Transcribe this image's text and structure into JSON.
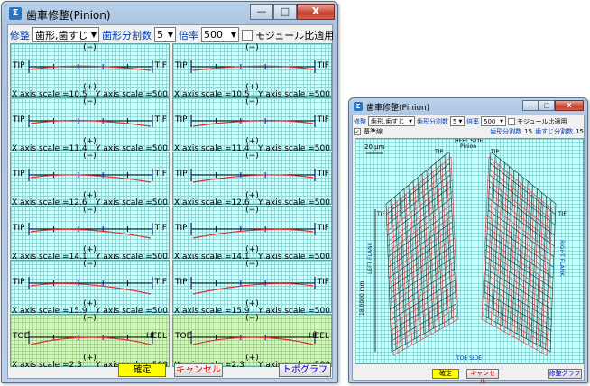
{
  "main": {
    "title": "歯車修整(Pinion)",
    "minimize": "—",
    "maximize": "□",
    "close": "X",
    "toolbar": {
      "mod_label": "修整",
      "mod_value": "歯形,歯すじ",
      "div_label": "歯形分割数",
      "div_value": "5",
      "scale_label": "倍率",
      "scale_value": "500",
      "module_ratio": "モジュール比適用"
    },
    "panels": [
      {
        "left": "TIP",
        "right": "TIF",
        "top": "(−)",
        "bottom": "(+)",
        "x": "X axis scale =10.5",
        "y": "Y axis scale =500"
      },
      {
        "left": "TIP",
        "right": "TIF",
        "top": "(−)",
        "bottom": "(+)",
        "x": "X axis scale =10.5",
        "y": "Y axis scale =500"
      },
      {
        "left": "TIP",
        "right": "TIF",
        "top": "(−)",
        "bottom": "(+)",
        "x": "X axis scale =11.4",
        "y": "Y axis scale =500"
      },
      {
        "left": "TIP",
        "right": "TIF",
        "top": "(−)",
        "bottom": "(+)",
        "x": "X axis scale =11.4",
        "y": "Y axis scale =500"
      },
      {
        "left": "TIP",
        "right": "TIF",
        "top": "(−)",
        "bottom": "(+)",
        "x": "X axis scale =12.6",
        "y": "Y axis scale =500"
      },
      {
        "left": "TIP",
        "right": "TIF",
        "top": "(−)",
        "bottom": "(+)",
        "x": "X axis scale =12.6",
        "y": "Y axis scale =500"
      },
      {
        "left": "TIP",
        "right": "TIF",
        "top": "(−)",
        "bottom": "(+)",
        "x": "X axis scale =14.1",
        "y": "Y axis scale =500"
      },
      {
        "left": "TIP",
        "right": "TIF",
        "top": "(−)",
        "bottom": "(+)",
        "x": "X axis scale =14.1",
        "y": "Y axis scale =500"
      },
      {
        "left": "TIP",
        "right": "TIF",
        "top": "(−)",
        "bottom": "(+)",
        "x": "X axis scale =15.9",
        "y": "Y axis scale =500"
      },
      {
        "left": "TIP",
        "right": "TIF",
        "top": "(−)",
        "bottom": "(+)",
        "x": "X axis scale =15.9",
        "y": "Y axis scale =500"
      },
      {
        "left": "TOE",
        "right": "HEEL",
        "top": "(−)",
        "bottom": "(+)",
        "x": "X axis scale =2.3",
        "y": "Y axis scale =500"
      },
      {
        "left": "TOE",
        "right": "HEEL",
        "top": "(−)",
        "bottom": "(+)",
        "x": "X axis scale =2.3",
        "y": "Y axis scale =500"
      }
    ],
    "buttons": {
      "ok": "確定",
      "cancel": "キャンセル",
      "topo": "トポグラフ"
    }
  },
  "sub": {
    "title": "歯車修整(Pinion)",
    "toolbar": {
      "mod_label": "修整",
      "mod_value": "歯形,歯すじ",
      "div_label": "歯形分割数",
      "div_value": "5",
      "scale_label": "倍率",
      "scale_value": "500",
      "module_ratio": "モジュール比適用"
    },
    "ref_label": "基準線",
    "profile_div_label": "歯形分割数",
    "profile_div_value": "15",
    "lead_div_label": "歯すじ分割数",
    "lead_div_value": "15",
    "scale_bar": "20 μm",
    "heel_side": "HEEL SIDE",
    "pinion": "Pinion",
    "tip_left": "TIP",
    "tip_right": "TIP",
    "tif_left": "TIF",
    "tif_right": "TIF",
    "left_flank": "LEFT FLANK",
    "right_flank": "RIGHT FLANK",
    "length": "18.0000 mm",
    "toe_side": "TOE SIDE",
    "buttons": {
      "ok": "確定",
      "cancel": "キャンセル",
      "mod_graph": "修整グラフ"
    }
  },
  "colors": {
    "accent_blue": "#003cb4",
    "curve_red": "#e03030",
    "grid_cyan": "#8ed8d8",
    "ok_yellow": "#ffff00"
  }
}
